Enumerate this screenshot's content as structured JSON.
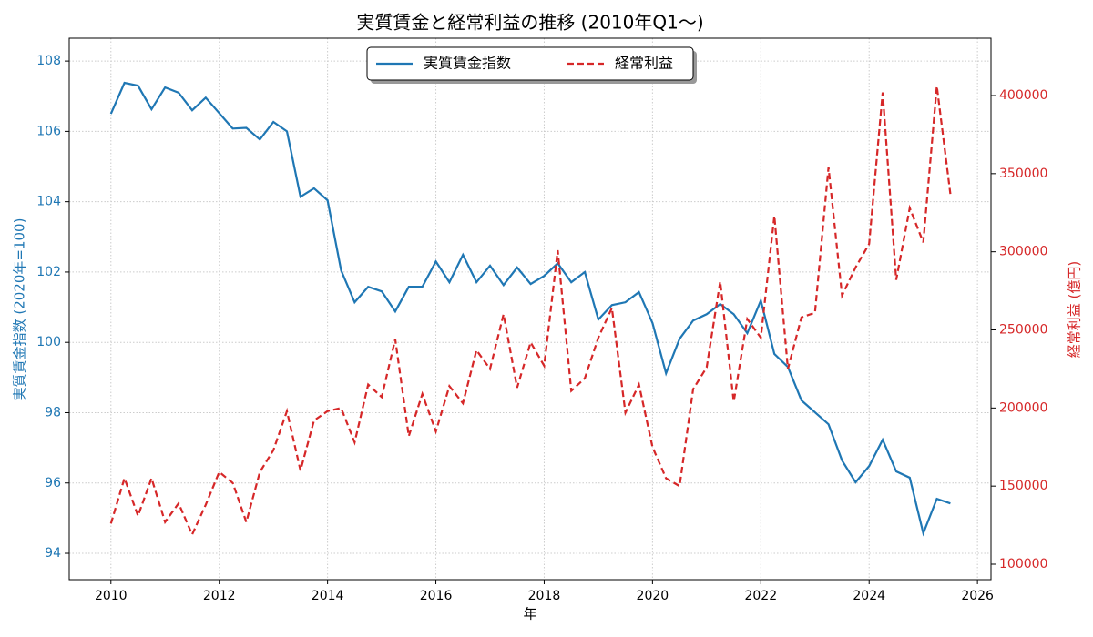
{
  "chart_data": {
    "type": "line",
    "title": "実質賃金と経常利益の推移 (2010年Q1〜)",
    "xlabel": "年",
    "ylabel": "実質賃金指数 (2020年=100)",
    "y2label": "経常利益 (億円)",
    "x": [
      2010,
      2010.25,
      2010.5,
      2010.75,
      2011,
      2011.25,
      2011.5,
      2011.75,
      2012,
      2012.25,
      2012.5,
      2012.75,
      2013,
      2013.25,
      2013.5,
      2013.75,
      2014,
      2014.25,
      2014.5,
      2014.75,
      2015,
      2015.25,
      2015.5,
      2015.75,
      2016,
      2016.25,
      2016.5,
      2016.75,
      2017,
      2017.25,
      2017.5,
      2017.75,
      2018,
      2018.25,
      2018.5,
      2018.75,
      2019,
      2019.25,
      2019.5,
      2019.75,
      2020,
      2020.25,
      2020.5,
      2020.75,
      2021,
      2021.25,
      2021.5,
      2021.75,
      2022,
      2022.25,
      2022.5,
      2022.75,
      2023,
      2023.25,
      2023.5,
      2023.75,
      2024,
      2024.25,
      2024.5,
      2024.75,
      2025,
      2025.25,
      2025.5
    ],
    "series": [
      {
        "name": "実質賃金指数",
        "color": "#1f77b4",
        "dash": false,
        "values": [
          106.5,
          107.38,
          107.3,
          106.63,
          107.25,
          107.1,
          106.6,
          106.96,
          106.52,
          106.08,
          106.1,
          105.77,
          106.27,
          106.0,
          104.14,
          104.38,
          104.04,
          102.05,
          101.14,
          101.58,
          101.45,
          100.88,
          101.58,
          101.58,
          102.3,
          101.71,
          102.49,
          101.71,
          102.18,
          101.63,
          102.13,
          101.66,
          101.89,
          102.25,
          101.71,
          102.0,
          100.65,
          101.06,
          101.14,
          101.43,
          100.55,
          99.12,
          100.1,
          100.62,
          100.8,
          101.09,
          100.8,
          100.26,
          101.19,
          99.67,
          99.3,
          98.35,
          98.01,
          97.67,
          96.64,
          96.02,
          96.48,
          97.23,
          96.33,
          96.15,
          94.57,
          95.55,
          95.42
        ]
      },
      {
        "name": "経常利益",
        "color": "#d62728",
        "dash": true,
        "axis": "y2",
        "values": [
          126000,
          155000,
          131000,
          155000,
          127000,
          139000,
          119000,
          138000,
          159000,
          152000,
          127000,
          159000,
          173000,
          198000,
          160000,
          192000,
          198000,
          200000,
          178000,
          215000,
          207000,
          244000,
          182000,
          209000,
          185000,
          214000,
          203000,
          237000,
          225000,
          260000,
          213000,
          242000,
          227000,
          301000,
          211000,
          219000,
          245000,
          264000,
          197000,
          215000,
          175000,
          155000,
          150000,
          212000,
          226000,
          281000,
          204000,
          257000,
          245000,
          323000,
          225000,
          258000,
          261000,
          354000,
          272000,
          290000,
          305000,
          402000,
          282000,
          328000,
          306000,
          406000,
          337000
        ]
      }
    ],
    "xlim": [
      2009.23,
      2026.25
    ],
    "xticks": [
      2010,
      2012,
      2014,
      2016,
      2018,
      2020,
      2022,
      2024,
      2026
    ],
    "ylim": [
      93.25,
      108.65
    ],
    "yticks": [
      94,
      96,
      98,
      100,
      102,
      104,
      106,
      108
    ],
    "y2lim": [
      90100,
      436700
    ],
    "y2ticks": [
      100000,
      150000,
      200000,
      250000,
      300000,
      350000,
      400000
    ],
    "grid": true,
    "legend": "upper center"
  }
}
